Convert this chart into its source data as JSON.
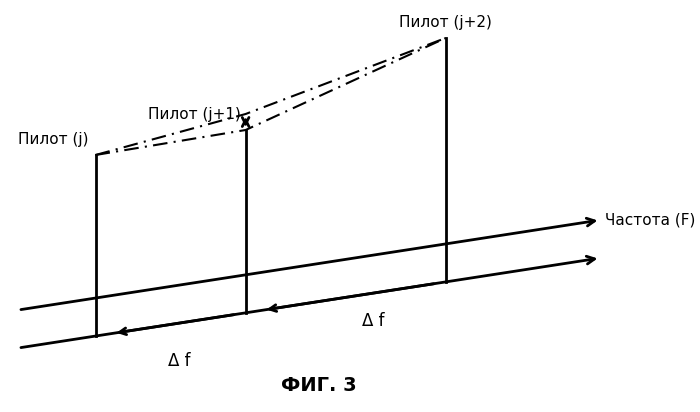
{
  "title": "ФИГ. 3",
  "label_pilot_j": "Пилот (j)",
  "label_pilot_j1": "Пилот (j+1)",
  "label_pilot_j2": "Пилот (j+2)",
  "label_freq": "Частота (F)",
  "label_delta_f": "Δ f",
  "bg_color": "#ffffff",
  "line_color": "#000000"
}
